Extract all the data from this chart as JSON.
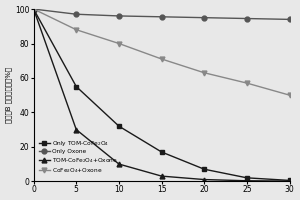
{
  "x": [
    0,
    5,
    10,
    15,
    20,
    25,
    30
  ],
  "only_tom": [
    100,
    55,
    32,
    17,
    7,
    2,
    0.5
  ],
  "only_oxone": [
    100,
    97,
    96,
    95.5,
    95,
    94.5,
    94
  ],
  "tom_oxone": [
    100,
    30,
    10,
    3,
    1,
    0.3,
    0.1
  ],
  "cofe_oxone": [
    100,
    88,
    80,
    71,
    63,
    57,
    50
  ],
  "ylabel": "罗丹明B 剩余百分比（%）",
  "xlim": [
    0,
    30
  ],
  "ylim": [
    0,
    100
  ],
  "xticks": [
    0,
    5,
    10,
    15,
    20,
    25,
    30
  ],
  "yticks": [
    0,
    20,
    40,
    60,
    80,
    100
  ],
  "legend_only_tom": "Only TOM-CoFe$_2$O$_4$",
  "legend_only_oxone": "Only Oxone",
  "legend_tom_oxone": "TOM-CoFe$_2$O$_4$+Oxone",
  "legend_cofe_oxone": "CoFe$_2$O$_4$+Oxone",
  "bg_color": "#e8e8e8",
  "color_dark": "#1a1a1a",
  "color_mid": "#555555",
  "color_light": "#888888"
}
